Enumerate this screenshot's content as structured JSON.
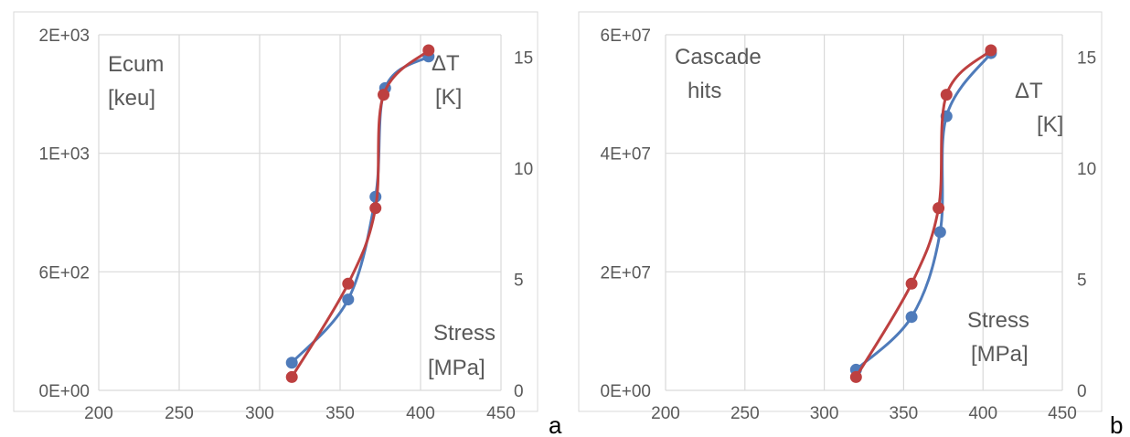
{
  "colors": {
    "series_blue": "#4f7bba",
    "series_red": "#bd4040",
    "grid": "#d9d9d9",
    "frame": "#d9d9d9",
    "text": "#595959"
  },
  "chart_data": [
    {
      "type": "scatter",
      "panel_label": "a",
      "annotations": {
        "left_label_1": "Ecum",
        "left_label_2": "[keu]",
        "right_label_1": "ΔT",
        "right_label_2": "[K]",
        "x_label_1": "Stress",
        "x_label_2": "[MPa]"
      },
      "x_ticks": [
        "200",
        "250",
        "300",
        "350",
        "400",
        "450"
      ],
      "y_left_ticks": [
        "0E+00",
        "6E+02",
        "1E+03",
        "2E+03"
      ],
      "y_right_ticks": [
        "0",
        "5",
        "10",
        "15"
      ],
      "xlim": [
        200,
        450
      ],
      "ylim_left": [
        0,
        1800
      ],
      "ylim_right": [
        0,
        16
      ],
      "series": [
        {
          "axis": "left",
          "color": "blue",
          "x": [
            320,
            355,
            372,
            378,
            405
          ],
          "y": [
            140,
            460,
            980,
            1530,
            1690
          ]
        },
        {
          "axis": "right",
          "color": "red",
          "x": [
            320,
            355,
            372,
            377,
            405
          ],
          "y": [
            0.6,
            4.8,
            8.2,
            13.3,
            15.3
          ]
        }
      ]
    },
    {
      "type": "scatter",
      "panel_label": "b",
      "annotations": {
        "left_label_1": "Cascade",
        "left_label_2": "hits",
        "right_label_1": "ΔT",
        "right_label_2": "[K]",
        "x_label_1": "Stress",
        "x_label_2": "[MPa]"
      },
      "x_ticks": [
        "200",
        "250",
        "300",
        "350",
        "400",
        "450"
      ],
      "y_left_ticks": [
        "0E+00",
        "2E+07",
        "4E+07",
        "6E+07"
      ],
      "y_right_ticks": [
        "0",
        "5",
        "10",
        "15"
      ],
      "xlim": [
        200,
        450
      ],
      "ylim_left": [
        0,
        62000000.0
      ],
      "ylim_right": [
        0,
        16
      ],
      "series": [
        {
          "axis": "left",
          "color": "blue",
          "x": [
            320,
            355,
            373,
            377,
            405
          ],
          "y": [
            3600000.0,
            12800000.0,
            27600000.0,
            47800000.0,
            58800000.0
          ]
        },
        {
          "axis": "right",
          "color": "red",
          "x": [
            320,
            355,
            372,
            377,
            405
          ],
          "y": [
            0.6,
            4.8,
            8.2,
            13.3,
            15.3
          ]
        }
      ]
    }
  ]
}
